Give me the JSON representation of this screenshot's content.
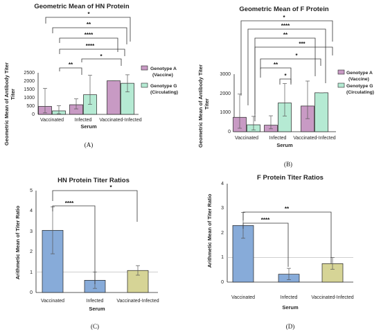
{
  "colors": {
    "genotype_a": "#c89ac4",
    "genotype_g": "#b5ead3",
    "vaccinated": "#87abd9",
    "infected": "#87abd9",
    "vacc_infected": "#d6d496",
    "stroke": "#222222",
    "refline": "#bfbfbf"
  },
  "chart_data": [
    {
      "id": "A",
      "type": "bar",
      "title": "Geometric Mean of HN Protein",
      "xlabel": "Serum",
      "ylabel": "Geometric Mean of  Antibody Titer",
      "ylim": [
        0,
        2500
      ],
      "yticks": [
        "0",
        "500",
        "1000",
        "1500",
        "2000",
        "2500"
      ],
      "categories": [
        "Vaccinated",
        "Infected",
        "Vaccinated-Infected"
      ],
      "series": [
        {
          "name": "Genotype  A (Vaccine)",
          "values": [
            480,
            580,
            2020
          ],
          "error_low": [
            90,
            330,
            2020
          ],
          "error_high": [
            1560,
            930,
            2020
          ]
        },
        {
          "name": "Genotype G (Circulating)",
          "values": [
            210,
            1180,
            1870
          ],
          "error_low": [
            40,
            600,
            1350
          ],
          "error_high": [
            520,
            2350,
            2380
          ]
        }
      ],
      "legend": "right",
      "panel_label": "(A)",
      "significance": [
        {
          "label": "*"
        },
        {
          "label": "**"
        },
        {
          "label": "****"
        },
        {
          "label": "****"
        },
        {
          "label": "*"
        },
        {
          "label": "**"
        }
      ]
    },
    {
      "id": "B",
      "type": "bar",
      "title": "Geometric Mean of F Protein",
      "xlabel": "Serum",
      "ylabel": "Geometric Mean of  Antibody Titer",
      "ylim": [
        0,
        3000
      ],
      "yticks": [
        "0",
        "1000",
        "2000",
        "3000"
      ],
      "categories": [
        "Vaccinated",
        "Infected",
        "Vaccinated-Infected"
      ],
      "series": [
        {
          "name": "Genotype  A (Vaccine)",
          "values": [
            750,
            340,
            1340
          ],
          "error_low": [
            180,
            150,
            680
          ],
          "error_high": [
            1960,
            830,
            2640
          ]
        },
        {
          "name": "Genotype G (Circulating)",
          "values": [
            360,
            1500,
            2030
          ],
          "error_low": [
            90,
            820,
            2030
          ],
          "error_high": [
            800,
            2510,
            2030
          ]
        }
      ],
      "legend": "right",
      "panel_label": "(B)",
      "significance": [
        {
          "label": "*"
        },
        {
          "label": "****"
        },
        {
          "label": "**"
        },
        {
          "label": "***"
        },
        {
          "label": "*"
        },
        {
          "label": "**"
        },
        {
          "label": "*"
        }
      ]
    },
    {
      "id": "C",
      "type": "bar",
      "title": "HN Protein Titer Ratios",
      "xlabel": "Serum",
      "ylabel": "Arithmetic Mean of Titer Ratio",
      "ylim": [
        0,
        5
      ],
      "yticks": [
        "0",
        "1",
        "2",
        "3",
        "4",
        "5"
      ],
      "categories": [
        "Vaccinated",
        "Infected",
        "Vaccinated-Infected"
      ],
      "values": [
        3.05,
        0.6,
        1.08
      ],
      "error_low": [
        1.9,
        0.2,
        0.85
      ],
      "error_high": [
        4.2,
        1.0,
        1.32
      ],
      "reference_line": 1,
      "panel_label": "(C)",
      "significance": [
        {
          "label": "****"
        },
        {
          "label": "*"
        }
      ]
    },
    {
      "id": "D",
      "type": "bar",
      "title": "F  Protein Titer  Ratios",
      "xlabel": "Serum",
      "ylabel": "Arithmetic Mean of Titer Ratio",
      "ylim": [
        0,
        4
      ],
      "yticks": [
        "0",
        "1",
        "2",
        "3",
        "4"
      ],
      "categories": [
        "Vaccinated",
        "Infected",
        "Vaccinated-Infected"
      ],
      "values": [
        2.3,
        0.32,
        0.75
      ],
      "error_low": [
        1.78,
        0.1,
        0.52
      ],
      "error_high": [
        2.83,
        0.56,
        1.0
      ],
      "reference_line": 1,
      "panel_label": "(D)",
      "significance": [
        {
          "label": "****"
        },
        {
          "label": "**"
        }
      ]
    }
  ]
}
